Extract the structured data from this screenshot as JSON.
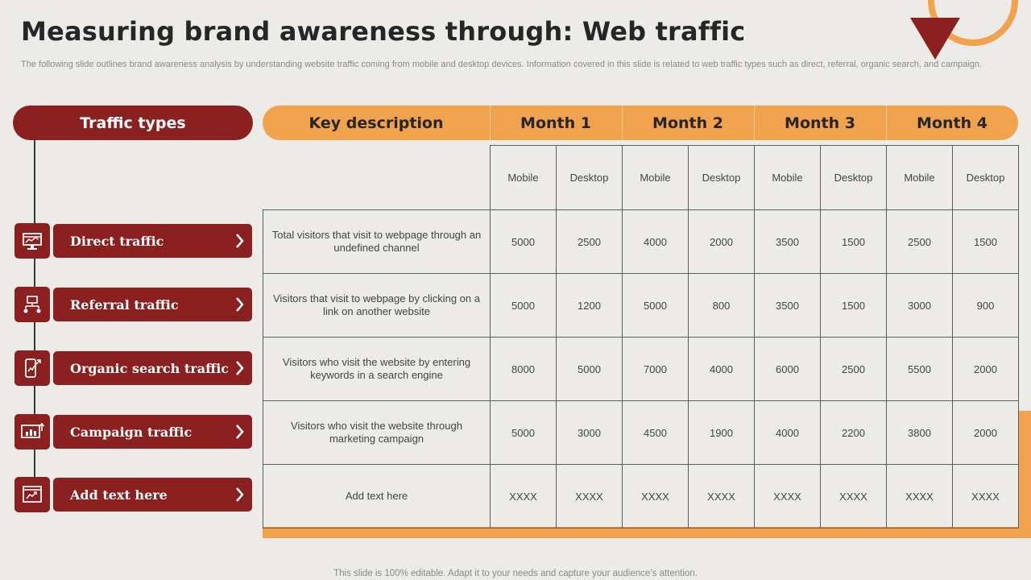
{
  "title": "Measuring brand awareness through: Web traffic",
  "subtitle": "The following slide outlines brand awareness analysis by understanding website traffic coming from mobile and desktop devices. Information covered in this slide is related to web traffic types such as direct, referral, organic search, and campaign.",
  "left_header": "Traffic types",
  "traffic_types": [
    {
      "label": "Direct traffic",
      "icon": "website-dashboard-icon"
    },
    {
      "label": "Referral traffic",
      "icon": "network-referral-icon"
    },
    {
      "label": "Organic search traffic",
      "icon": "mobile-growth-icon"
    },
    {
      "label": "Campaign traffic",
      "icon": "presentation-chart-icon"
    },
    {
      "label": "Add text here",
      "icon": "analytics-window-icon"
    }
  ],
  "table": {
    "key_header": "Key description",
    "months": [
      "Month 1",
      "Month 2",
      "Month 3",
      "Month 4"
    ],
    "subheaders": [
      "Mobile",
      "Desktop",
      "Mobile",
      "Desktop",
      "Mobile",
      "Desktop",
      "Mobile",
      "Desktop"
    ],
    "rows": [
      {
        "desc": "Total visitors that visit to webpage  through an undefined  channel",
        "values": [
          "5000",
          "2500",
          "4000",
          "2000",
          "3500",
          "1500",
          "2500",
          "1500"
        ]
      },
      {
        "desc": "Visitors that visit to webpage  by clicking on a link on another website",
        "values": [
          "5000",
          "1200",
          "5000",
          "800",
          "3500",
          "1500",
          "3000",
          "900"
        ]
      },
      {
        "desc": "Visitors who visit the website by entering keywords in a search engine",
        "values": [
          "8000",
          "5000",
          "7000",
          "4000",
          "6000",
          "2500",
          "5500",
          "2000"
        ]
      },
      {
        "desc": "Visitors who visit the website through marketing campaign",
        "values": [
          "5000",
          "3000",
          "4500",
          "1900",
          "4000",
          "2200",
          "3800",
          "2000"
        ]
      },
      {
        "desc": "Add text here",
        "values": [
          "XXXX",
          "XXXX",
          "XXXX",
          "XXXX",
          "XXXX",
          "XXXX",
          "XXXX",
          "XXXX"
        ]
      }
    ]
  },
  "footer": "This slide is 100% editable. Adapt it to your needs and capture your audience’s attention.",
  "colors": {
    "maroon": "#8b2020",
    "orange": "#f0a24c",
    "background": "#edebe8"
  }
}
